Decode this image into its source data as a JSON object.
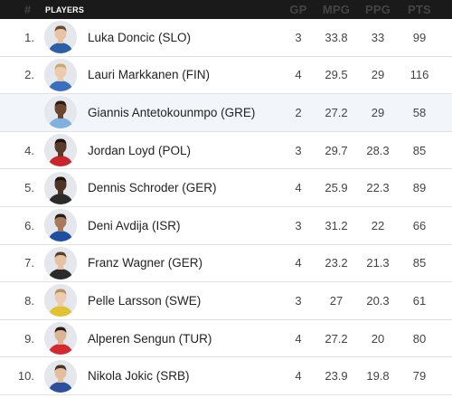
{
  "header": {
    "rank": "#",
    "players": "PLAYERS",
    "gp": "GP",
    "mpg": "MPG",
    "ppg": "PPG",
    "pts": "PTS"
  },
  "rows": [
    {
      "rank": "1.",
      "name": "Luka Doncic (SLO)",
      "gp": "3",
      "mpg": "33.8",
      "ppg": "33",
      "pts": "99",
      "jersey": "#2c5fa8",
      "skin": "#e8c4a4",
      "hair": "#6b4a32"
    },
    {
      "rank": "2.",
      "name": "Lauri Markkanen (FIN)",
      "gp": "4",
      "mpg": "29.5",
      "ppg": "29",
      "pts": "116",
      "jersey": "#3a6fbf",
      "skin": "#eccaae",
      "hair": "#c9a874"
    },
    {
      "rank": "",
      "name": "Giannis Antetokounmpo (GRE)",
      "gp": "2",
      "mpg": "27.2",
      "ppg": "29",
      "pts": "58",
      "jersey": "#7fb0e0",
      "skin": "#6b4530",
      "hair": "#2a1d15"
    },
    {
      "rank": "4.",
      "name": "Jordan Loyd (POL)",
      "gp": "3",
      "mpg": "29.7",
      "ppg": "28.3",
      "pts": "85",
      "jersey": "#c8262b",
      "skin": "#5a3a28",
      "hair": "#1e1410"
    },
    {
      "rank": "5.",
      "name": "Dennis Schroder (GER)",
      "gp": "4",
      "mpg": "25.9",
      "ppg": "22.3",
      "pts": "89",
      "jersey": "#2b2b2b",
      "skin": "#4e3224",
      "hair": "#1a120e"
    },
    {
      "rank": "6.",
      "name": "Deni Avdija (ISR)",
      "gp": "3",
      "mpg": "31.2",
      "ppg": "22",
      "pts": "66",
      "jersey": "#1f4fa0",
      "skin": "#a87a5c",
      "hair": "#2a1d15"
    },
    {
      "rank": "7.",
      "name": "Franz Wagner (GER)",
      "gp": "4",
      "mpg": "23.2",
      "ppg": "21.3",
      "pts": "85",
      "jersey": "#2b2b2b",
      "skin": "#e6c2a2",
      "hair": "#5c3f2a"
    },
    {
      "rank": "8.",
      "name": "Pelle Larsson (SWE)",
      "gp": "3",
      "mpg": "27",
      "ppg": "20.3",
      "pts": "61",
      "jersey": "#e0c233",
      "skin": "#ecccb0",
      "hair": "#b8935e"
    },
    {
      "rank": "9.",
      "name": "Alperen Sengun (TUR)",
      "gp": "4",
      "mpg": "27.2",
      "ppg": "20",
      "pts": "80",
      "jersey": "#d22a2f",
      "skin": "#dcb594",
      "hair": "#2a1d15"
    },
    {
      "rank": "10.",
      "name": "Nikola Jokic (SRB)",
      "gp": "4",
      "mpg": "23.9",
      "ppg": "19.8",
      "pts": "79",
      "jersey": "#2c4fa0",
      "skin": "#e3bf9e",
      "hair": "#4a3426"
    }
  ]
}
